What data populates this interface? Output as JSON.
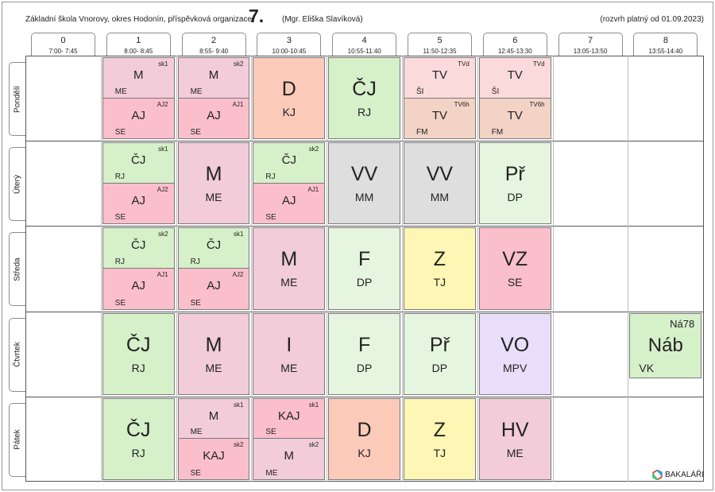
{
  "header": {
    "school": "Základní škola Vnorovy, okres Hodonín, příspěvková organizace",
    "class_name": "7.",
    "teacher": "(Mgr. Eliška Slavíková)",
    "valid_from": "(rozvrh platný od 01.09.2023)"
  },
  "periods": [
    {
      "num": "0",
      "time": "7:00- 7:45"
    },
    {
      "num": "1",
      "time": "8:00- 8:45"
    },
    {
      "num": "2",
      "time": "8:55- 9:40"
    },
    {
      "num": "3",
      "time": "10:00-10:45"
    },
    {
      "num": "4",
      "time": "10:55-11:40"
    },
    {
      "num": "5",
      "time": "11:50-12:35"
    },
    {
      "num": "6",
      "time": "12:45-13:30"
    },
    {
      "num": "7",
      "time": "13:05-13:50"
    },
    {
      "num": "8",
      "time": "13:55-14:40"
    }
  ],
  "days": [
    {
      "name": "Pondělí",
      "lessons": [
        {
          "period": 1,
          "type": "split",
          "top": {
            "subject": "M",
            "group": "sk1",
            "teacher": "ME",
            "color": "#f2ccd8"
          },
          "bottom": {
            "subject": "AJ",
            "group": "AJ2",
            "teacher": "SE",
            "color": "#fbbfcc"
          }
        },
        {
          "period": 2,
          "type": "split",
          "top": {
            "subject": "M",
            "group": "sk2",
            "teacher": "ME",
            "color": "#f2ccd8"
          },
          "bottom": {
            "subject": "AJ",
            "group": "AJ1",
            "teacher": "SE",
            "color": "#fbbfcc"
          }
        },
        {
          "period": 3,
          "type": "full",
          "subject": "D",
          "teacher": "KJ",
          "color": "#fccab9"
        },
        {
          "period": 4,
          "type": "full",
          "subject": "ČJ",
          "teacher": "RJ",
          "color": "#d6f0c9"
        },
        {
          "period": 5,
          "type": "split",
          "top": {
            "subject": "TV",
            "group": "TVd",
            "teacher": "ŠI",
            "color": "#fadada"
          },
          "bottom": {
            "subject": "TV",
            "group": "TV6h",
            "teacher": "FM",
            "color": "#f3d3c5"
          }
        },
        {
          "period": 6,
          "type": "split",
          "top": {
            "subject": "TV",
            "group": "TVd",
            "teacher": "ŠI",
            "color": "#fadada"
          },
          "bottom": {
            "subject": "TV",
            "group": "TV6h",
            "teacher": "FM",
            "color": "#f3d3c5"
          }
        }
      ]
    },
    {
      "name": "Úterý",
      "lessons": [
        {
          "period": 1,
          "type": "split",
          "top": {
            "subject": "ČJ",
            "group": "sk1",
            "teacher": "RJ",
            "color": "#d6f0c9"
          },
          "bottom": {
            "subject": "AJ",
            "group": "AJ2",
            "teacher": "SE",
            "color": "#fbbfcc"
          }
        },
        {
          "period": 2,
          "type": "full",
          "subject": "M",
          "teacher": "ME",
          "color": "#f2ccd8"
        },
        {
          "period": 3,
          "type": "split",
          "top": {
            "subject": "ČJ",
            "group": "sk2",
            "teacher": "RJ",
            "color": "#d6f0c9"
          },
          "bottom": {
            "subject": "AJ",
            "group": "AJ1",
            "teacher": "SE",
            "color": "#fbbfcc"
          }
        },
        {
          "period": 4,
          "type": "full",
          "subject": "VV",
          "teacher": "MM",
          "color": "#dedede"
        },
        {
          "period": 5,
          "type": "full",
          "subject": "VV",
          "teacher": "MM",
          "color": "#dedede"
        },
        {
          "period": 6,
          "type": "full",
          "subject": "Př",
          "teacher": "DP",
          "color": "#e6f5df"
        }
      ]
    },
    {
      "name": "Středa",
      "lessons": [
        {
          "period": 1,
          "type": "split",
          "top": {
            "subject": "ČJ",
            "group": "sk2",
            "teacher": "RJ",
            "color": "#d6f0c9"
          },
          "bottom": {
            "subject": "AJ",
            "group": "AJ1",
            "teacher": "SE",
            "color": "#fbbfcc"
          }
        },
        {
          "period": 2,
          "type": "split",
          "top": {
            "subject": "ČJ",
            "group": "sk1",
            "teacher": "RJ",
            "color": "#d6f0c9"
          },
          "bottom": {
            "subject": "AJ",
            "group": "AJ2",
            "teacher": "SE",
            "color": "#fbbfcc"
          }
        },
        {
          "period": 3,
          "type": "full",
          "subject": "M",
          "teacher": "ME",
          "color": "#f2ccd8"
        },
        {
          "period": 4,
          "type": "full",
          "subject": "F",
          "teacher": "DP",
          "color": "#e6f5df"
        },
        {
          "period": 5,
          "type": "full",
          "subject": "Z",
          "teacher": "TJ",
          "color": "#fdf6b4"
        },
        {
          "period": 6,
          "type": "full",
          "subject": "VZ",
          "teacher": "SE",
          "color": "#fbbfcc"
        }
      ]
    },
    {
      "name": "Čtvrtek",
      "lessons": [
        {
          "period": 1,
          "type": "full",
          "subject": "ČJ",
          "teacher": "RJ",
          "color": "#d6f0c9"
        },
        {
          "period": 2,
          "type": "full",
          "subject": "M",
          "teacher": "ME",
          "color": "#f2ccd8"
        },
        {
          "period": 3,
          "type": "full",
          "subject": "I",
          "teacher": "ME",
          "color": "#f2ccd8"
        },
        {
          "period": 4,
          "type": "full",
          "subject": "F",
          "teacher": "DP",
          "color": "#e6f5df"
        },
        {
          "period": 5,
          "type": "full",
          "subject": "Př",
          "teacher": "DP",
          "color": "#e6f5df"
        },
        {
          "period": 6,
          "type": "full",
          "subject": "VO",
          "teacher": "MPV",
          "color": "#e8defa"
        },
        {
          "period": 8,
          "type": "nab",
          "subject": "Náb",
          "group": "Ná78",
          "teacher": "VK",
          "color": "#d6f0c9"
        }
      ]
    },
    {
      "name": "Pátek",
      "lessons": [
        {
          "period": 1,
          "type": "full",
          "subject": "ČJ",
          "teacher": "RJ",
          "color": "#d6f0c9"
        },
        {
          "period": 2,
          "type": "split",
          "top": {
            "subject": "M",
            "group": "sk1",
            "teacher": "ME",
            "color": "#f2ccd8"
          },
          "bottom": {
            "subject": "KAJ",
            "group": "sk2",
            "teacher": "SE",
            "color": "#fbbfcc"
          }
        },
        {
          "period": 3,
          "type": "split",
          "top": {
            "subject": "KAJ",
            "group": "sk1",
            "teacher": "SE",
            "color": "#fbbfcc"
          },
          "bottom": {
            "subject": "M",
            "group": "sk2",
            "teacher": "ME",
            "color": "#f2ccd8"
          }
        },
        {
          "period": 4,
          "type": "full",
          "subject": "D",
          "teacher": "KJ",
          "color": "#fccab9"
        },
        {
          "period": 5,
          "type": "full",
          "subject": "Z",
          "teacher": "TJ",
          "color": "#fdf6b4"
        },
        {
          "period": 6,
          "type": "full",
          "subject": "HV",
          "teacher": "ME",
          "color": "#f2ccd8"
        }
      ]
    }
  ],
  "footer": {
    "brand": "BAKALÁŘI",
    "brand_icon": "bakalari-logo-icon"
  }
}
